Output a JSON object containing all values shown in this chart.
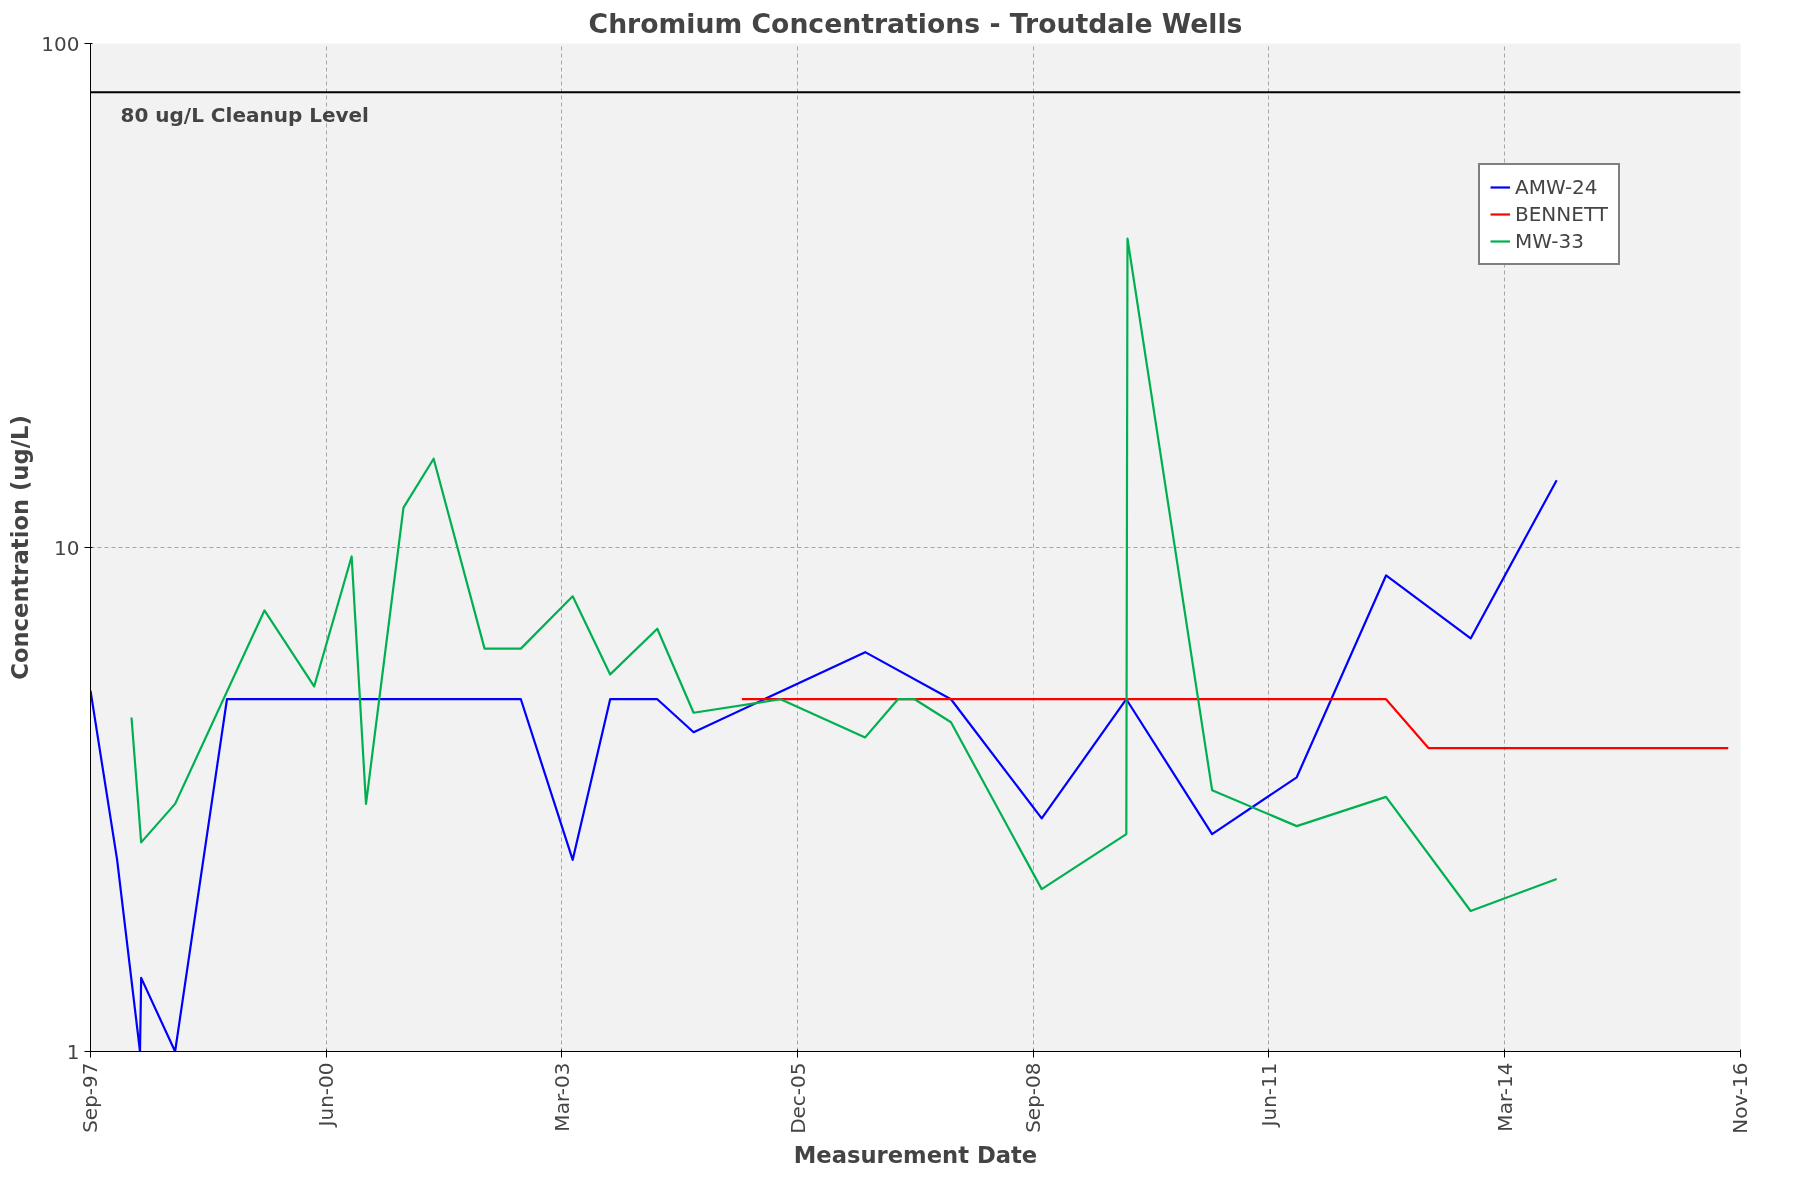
{
  "chart_data": {
    "type": "line",
    "title": "Chromium Concentrations - Troutdale Wells",
    "xlabel": "Measurement Date",
    "ylabel": "Concentration (ug/L)",
    "series": [
      {
        "name": "AMW-24",
        "color": "#0000ff",
        "x": [
          "1997-09-30",
          "1998-01-21",
          "1998-04-28",
          "1998-05-03",
          "1998-09-24",
          "1999-05-02",
          "2002-09-30",
          "2003-05-08",
          "2003-10-14",
          "2004-05-01",
          "2004-10-02",
          "2006-09-30",
          "2007-09-29",
          "2008-10-18",
          "2009-10-12",
          "2010-10-11",
          "2011-10-05",
          "2012-10-18",
          "2013-10-12",
          "2014-10-12"
        ],
        "values": [
          5.2,
          2.4,
          1,
          1.4,
          1,
          5,
          5,
          2.4,
          5,
          5,
          4.3,
          6.2,
          5,
          2.9,
          5,
          2.7,
          3.5,
          8.8,
          6.6,
          13.6
        ]
      },
      {
        "name": "BENNETT",
        "color": "#ff0000",
        "x": [
          "2005-04-25",
          "2012-10-18",
          "2013-04-16",
          "2016-10-09"
        ],
        "values": [
          5,
          5,
          4,
          4
        ]
      },
      {
        "name": "MW-33",
        "color": "#00b050",
        "x": [
          "1998-03-23",
          "1998-05-03",
          "1998-09-24",
          "1999-10-08",
          "2000-05-06",
          "2000-10-12",
          "2000-12-12",
          "2001-05-20",
          "2001-09-25",
          "2002-04-29",
          "2002-09-30",
          "2003-05-08",
          "2003-10-14",
          "2004-05-01",
          "2004-10-02",
          "2005-10-06",
          "2006-09-30",
          "2007-02-16",
          "2007-04-28",
          "2007-09-29",
          "2008-10-18",
          "2009-10-12",
          "2009-10-17",
          "2010-10-11",
          "2011-10-05",
          "2012-10-18",
          "2013-10-12",
          "2014-10-12"
        ],
        "values": [
          4.6,
          2.6,
          3.1,
          7.5,
          5.3,
          9.6,
          3.1,
          12,
          15,
          6.3,
          6.3,
          8.0,
          5.6,
          6.9,
          4.7,
          5,
          4.2,
          5,
          5,
          4.5,
          2.1,
          2.7,
          41,
          3.3,
          2.8,
          3.2,
          1.9,
          2.2
        ]
      }
    ],
    "xlim": [
      "1997-09-30",
      "2016-11-30"
    ],
    "xticks": [
      {
        "value": "1997-09-30",
        "label": "Sep-97"
      },
      {
        "value": "2000-06-26",
        "label": "Jun-00"
      },
      {
        "value": "2003-03-23",
        "label": "Mar-03"
      },
      {
        "value": "2005-12-17",
        "label": "Dec-05"
      },
      {
        "value": "2008-09-12",
        "label": "Sep-08"
      },
      {
        "value": "2011-06-09",
        "label": "Jun-11"
      },
      {
        "value": "2014-03-05",
        "label": "Mar-14"
      },
      {
        "value": "2016-11-30",
        "label": "Nov-16"
      }
    ],
    "ylim": [
      1,
      100
    ],
    "yticks": [
      1,
      10,
      100
    ],
    "log": true,
    "grid": true,
    "legend": "top right",
    "marker": "none",
    "line_style": "solid",
    "ref_lines": [
      {
        "axis": "y",
        "value": 80,
        "label": "80 ug/L Cleanup Level",
        "color": "#000000"
      }
    ]
  }
}
